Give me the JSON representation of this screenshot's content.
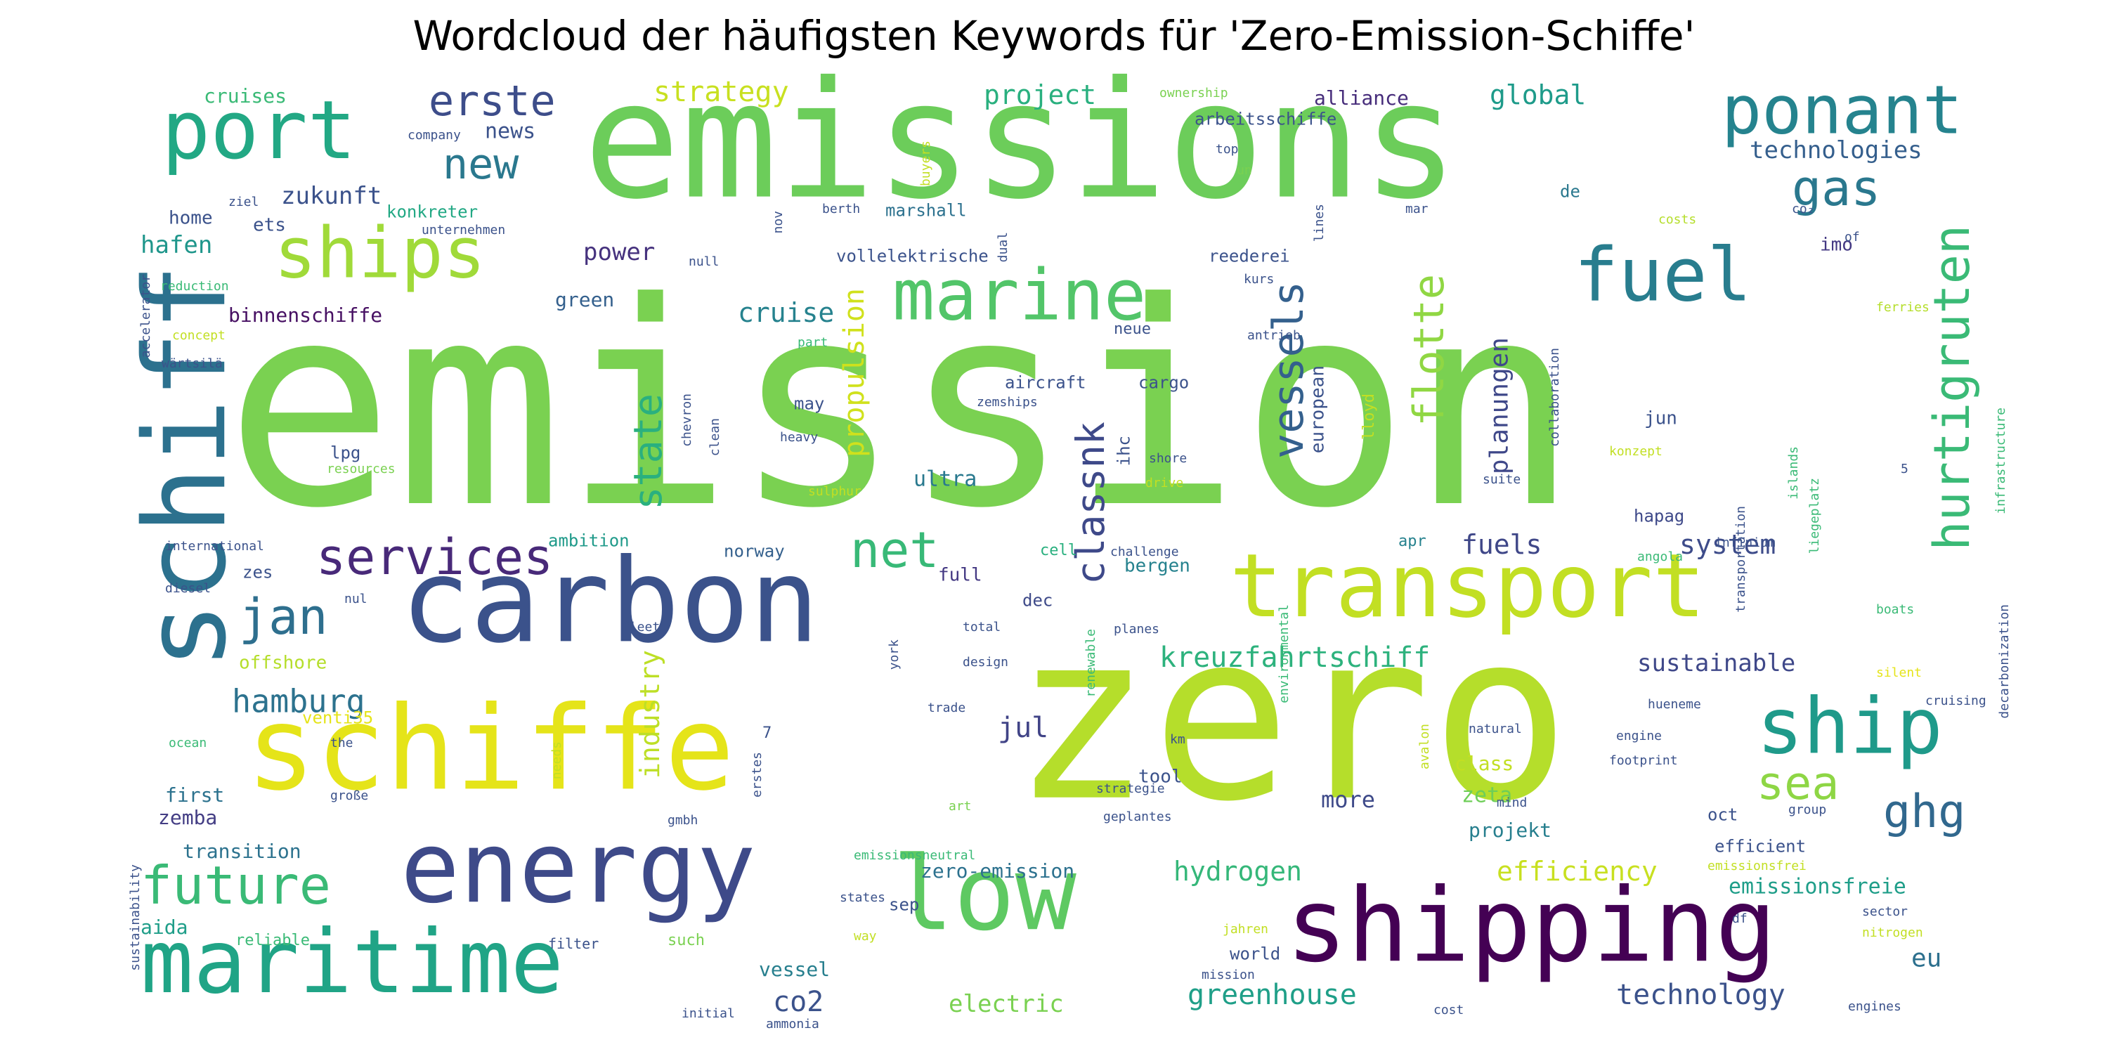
{
  "chart_data": {
    "type": "wordcloud",
    "title": "Wordcloud der häufigsten Keywords für 'Zero-Emission-Schiffe'",
    "words": [
      {
        "text": "emission",
        "weight": 100,
        "color": "#7ad151"
      },
      {
        "text": "emissions",
        "weight": 62,
        "color": "#6ccd5a"
      },
      {
        "text": "zero",
        "weight": 60,
        "color": "#b5de2b"
      },
      {
        "text": "schiff",
        "weight": 34,
        "color": "#2c718e",
        "vertical": true
      },
      {
        "text": "carbon",
        "weight": 42,
        "color": "#3b528b"
      },
      {
        "text": "schiffe",
        "weight": 40,
        "color": "#e5e419"
      },
      {
        "text": "shipping",
        "weight": 36,
        "color": "#440154"
      },
      {
        "text": "low",
        "weight": 35,
        "color": "#5ec962"
      },
      {
        "text": "energy",
        "weight": 33,
        "color": "#3e4a89"
      },
      {
        "text": "maritime",
        "weight": 30,
        "color": "#20a486"
      },
      {
        "text": "transport",
        "weight": 30,
        "color": "#c2df23"
      },
      {
        "text": "port",
        "weight": 28,
        "color": "#22a884"
      },
      {
        "text": "ponant",
        "weight": 22,
        "color": "#25838e"
      },
      {
        "text": "ship",
        "weight": 23,
        "color": "#1f9a8a"
      },
      {
        "text": "fuel",
        "weight": 22,
        "color": "#287d8e"
      },
      {
        "text": "ships",
        "weight": 20,
        "color": "#a0da39"
      },
      {
        "text": "marine",
        "weight": 20,
        "color": "#52c569"
      },
      {
        "text": "hurtigruten",
        "weight": 16,
        "color": "#3aba76",
        "vertical": true
      },
      {
        "text": "services",
        "weight": 15,
        "color": "#482979"
      },
      {
        "text": "future",
        "weight": 15,
        "color": "#3aba76"
      },
      {
        "text": "jan",
        "weight": 15,
        "color": "#2e6f8e"
      },
      {
        "text": "net",
        "weight": 15,
        "color": "#38b977"
      },
      {
        "text": "gas",
        "weight": 15,
        "color": "#2a788e"
      },
      {
        "text": "vessels",
        "weight": 14,
        "color": "#34608d",
        "vertical": true
      },
      {
        "text": "flotte",
        "weight": 14,
        "color": "#90d743",
        "vertical": true
      },
      {
        "text": "state",
        "weight": 13,
        "color": "#2ab07f",
        "vertical": true
      },
      {
        "text": "classnk",
        "weight": 13,
        "color": "#3e4989",
        "vertical": true
      },
      {
        "text": "ghg",
        "weight": 13,
        "color": "#31688e"
      },
      {
        "text": "sea",
        "weight": 13,
        "color": "#8ed645"
      },
      {
        "text": "erste",
        "weight": 12,
        "color": "#3d4d8a"
      },
      {
        "text": "new",
        "weight": 12,
        "color": "#2a788e"
      },
      {
        "text": "propulsion",
        "weight": 9,
        "color": "#d0e11c",
        "vertical": true
      },
      {
        "text": "industry",
        "weight": 8,
        "color": "#bddf26",
        "vertical": true
      },
      {
        "text": "kreuzfahrtschiff",
        "weight": 8,
        "color": "#2db27d"
      },
      {
        "text": "hamburg",
        "weight": 9,
        "color": "#2c728e"
      },
      {
        "text": "greenhouse",
        "weight": 9,
        "color": "#1f9f88"
      },
      {
        "text": "hydrogen",
        "weight": 8,
        "color": "#35b779"
      },
      {
        "text": "efficiency",
        "weight": 8,
        "color": "#c8e020"
      },
      {
        "text": "technology",
        "weight": 8,
        "color": "#3b528b"
      },
      {
        "text": "strategy",
        "weight": 8,
        "color": "#c8e020"
      },
      {
        "text": "project",
        "weight": 8,
        "color": "#2ab07f"
      },
      {
        "text": "global",
        "weight": 8,
        "color": "#1e9b8a"
      },
      {
        "text": "planungen",
        "weight": 7,
        "color": "#3f4889",
        "vertical": true
      },
      {
        "text": "fuels",
        "weight": 7,
        "color": "#3f4788"
      },
      {
        "text": "system",
        "weight": 7,
        "color": "#3e4c8a"
      },
      {
        "text": "sustainable",
        "weight": 6,
        "color": "#3f4889"
      },
      {
        "text": "technologies",
        "weight": 6,
        "color": "#355f8d"
      },
      {
        "text": "jul",
        "weight": 7,
        "color": "#414487"
      },
      {
        "text": "cruise",
        "weight": 7,
        "color": "#26828e"
      },
      {
        "text": "power",
        "weight": 6,
        "color": "#46327e"
      },
      {
        "text": "zukunft",
        "weight": 6,
        "color": "#3b528b"
      },
      {
        "text": "hafen",
        "weight": 6,
        "color": "#1f968b"
      },
      {
        "text": "eu",
        "weight": 6,
        "color": "#2d708e"
      },
      {
        "text": "co2",
        "weight": 7,
        "color": "#3b528b"
      },
      {
        "text": "electric",
        "weight": 6,
        "color": "#7ad151"
      },
      {
        "text": "emissionsfreie",
        "weight": 5,
        "color": "#1f9e89"
      },
      {
        "text": "ultra",
        "weight": 5,
        "color": "#29798e"
      },
      {
        "text": "cruises",
        "weight": 4,
        "color": "#3aba76"
      },
      {
        "text": "news",
        "weight": 4,
        "color": "#3b528b"
      },
      {
        "text": "alliance",
        "weight": 4,
        "color": "#472d7b"
      },
      {
        "text": "european",
        "weight": 4,
        "color": "#3b528b",
        "vertical": true
      },
      {
        "text": "zero-emission",
        "weight": 4,
        "color": "#2c718e"
      },
      {
        "text": "aida",
        "weight": 4,
        "color": "#1f9e89"
      },
      {
        "text": "vessel",
        "weight": 4,
        "color": "#277f8e"
      },
      {
        "text": "more",
        "weight": 5,
        "color": "#3e4a89"
      },
      {
        "text": "zeta",
        "weight": 4,
        "color": "#6ece58"
      },
      {
        "text": "projekt",
        "weight": 4,
        "color": "#277f8e"
      },
      {
        "text": "first",
        "weight": 4,
        "color": "#2c728e"
      },
      {
        "text": "zemba",
        "weight": 4,
        "color": "#433d84"
      },
      {
        "text": "transition",
        "weight": 4,
        "color": "#2c728e"
      },
      {
        "text": "offshore",
        "weight": 4,
        "color": "#b5de2b"
      },
      {
        "text": "binnenschiffe",
        "weight": 4,
        "color": "#471063"
      },
      {
        "text": "green",
        "weight": 4,
        "color": "#34608d"
      },
      {
        "text": "home",
        "weight": 4,
        "color": "#3b528b"
      },
      {
        "text": "ets",
        "weight": 4,
        "color": "#3b528b"
      },
      {
        "text": "konkreter",
        "weight": 3,
        "color": "#22a884"
      },
      {
        "text": "marshall",
        "weight": 3,
        "color": "#2c718e"
      },
      {
        "text": "vollelektrische",
        "weight": 3,
        "color": "#3b528b"
      },
      {
        "text": "reederei",
        "weight": 3,
        "color": "#3b528b"
      },
      {
        "text": "imo",
        "weight": 4,
        "color": "#443983"
      },
      {
        "text": "class",
        "weight": 4,
        "color": "#c2df23"
      },
      {
        "text": "bergen",
        "weight": 3,
        "color": "#26828e"
      },
      {
        "text": "dec",
        "weight": 3,
        "color": "#3e4a89"
      },
      {
        "text": "full",
        "weight": 4,
        "color": "#443983"
      },
      {
        "text": "zes",
        "weight": 3,
        "color": "#3b528b"
      },
      {
        "text": "ambition",
        "weight": 3,
        "color": "#1f9a8a"
      },
      {
        "text": "norway",
        "weight": 3,
        "color": "#34608d"
      },
      {
        "text": "hapag",
        "weight": 3,
        "color": "#3e4989"
      },
      {
        "text": "may",
        "weight": 3,
        "color": "#3b528b"
      },
      {
        "text": "jun",
        "weight": 3,
        "color": "#3b528b"
      },
      {
        "text": "aircraft",
        "weight": 3,
        "color": "#3b528b"
      },
      {
        "text": "cargo",
        "weight": 3,
        "color": "#3b528b"
      },
      {
        "text": "ihc",
        "weight": 3,
        "color": "#3b528b",
        "vertical": true
      },
      {
        "text": "lpg",
        "weight": 3,
        "color": "#3b528b"
      },
      {
        "text": "venti35",
        "weight": 3,
        "color": "#e5e419"
      },
      {
        "text": "tool",
        "weight": 3,
        "color": "#3b528b"
      },
      {
        "text": "oct",
        "weight": 3,
        "color": "#3b528b"
      },
      {
        "text": "efficient",
        "weight": 3,
        "color": "#3b528b"
      },
      {
        "text": "sep",
        "weight": 3,
        "color": "#3b528b"
      },
      {
        "text": "world",
        "weight": 3,
        "color": "#3b528b"
      },
      {
        "text": "lloyd",
        "weight": 3,
        "color": "#c2df23",
        "vertical": true
      },
      {
        "text": "apr",
        "weight": 3,
        "color": "#26828e"
      },
      {
        "text": "cell",
        "weight": 3,
        "color": "#2ab07f"
      },
      {
        "text": "de",
        "weight": 3,
        "color": "#2a788e"
      },
      {
        "text": "neue",
        "weight": 3,
        "color": "#3b528b"
      },
      {
        "text": "reliable",
        "weight": 3,
        "color": "#3aba76"
      },
      {
        "text": "filter",
        "weight": 2,
        "color": "#3b528b"
      },
      {
        "text": "such",
        "weight": 3,
        "color": "#7ad151"
      },
      {
        "text": "nov",
        "weight": 2,
        "color": "#3b528b",
        "vertical": true
      },
      {
        "text": "resources",
        "weight": 2,
        "color": "#7ad151"
      },
      {
        "text": "international",
        "weight": 2,
        "color": "#3b528b"
      },
      {
        "text": "design",
        "weight": 2,
        "color": "#3b528b"
      },
      {
        "text": "total",
        "weight": 2,
        "color": "#3b528b"
      },
      {
        "text": "planes",
        "weight": 2,
        "color": "#3b528b"
      },
      {
        "text": "shore",
        "weight": 2,
        "color": "#3b528b"
      },
      {
        "text": "heavy",
        "weight": 2,
        "color": "#3b528b"
      },
      {
        "text": "clean",
        "weight": 2,
        "color": "#3b528b",
        "vertical": true
      },
      {
        "text": "chevron",
        "weight": 2,
        "color": "#3b528b",
        "vertical": true
      },
      {
        "text": "trade",
        "weight": 2,
        "color": "#3b528b"
      },
      {
        "text": "art",
        "weight": 2,
        "color": "#7ad151"
      },
      {
        "text": "geplantes",
        "weight": 2,
        "color": "#3b528b"
      },
      {
        "text": "strategie",
        "weight": 2,
        "color": "#3b528b"
      },
      {
        "text": "natural",
        "weight": 2,
        "color": "#3b528b"
      },
      {
        "text": "mind",
        "weight": 2,
        "color": "#3b528b"
      },
      {
        "text": "footprint",
        "weight": 2,
        "color": "#3b528b"
      },
      {
        "text": "engine",
        "weight": 2,
        "color": "#3b528b"
      },
      {
        "text": "hueneme",
        "weight": 2,
        "color": "#3b528b"
      },
      {
        "text": "infinium",
        "weight": 2,
        "color": "#3b528b"
      },
      {
        "text": "angola",
        "weight": 2,
        "color": "#3aba76"
      },
      {
        "text": "boats",
        "weight": 2,
        "color": "#3aba76"
      },
      {
        "text": "silent",
        "weight": 2,
        "color": "#e5e419"
      },
      {
        "text": "cruising",
        "weight": 2,
        "color": "#3b528b"
      },
      {
        "text": "ferries",
        "weight": 2,
        "color": "#b5de2b"
      },
      {
        "text": "co₂",
        "weight": 2,
        "color": "#3b528b"
      },
      {
        "text": "of",
        "weight": 2,
        "color": "#3b528b"
      },
      {
        "text": "costs",
        "weight": 2,
        "color": "#b5de2b"
      },
      {
        "text": "konzept",
        "weight": 2,
        "color": "#c2df23"
      },
      {
        "text": "suite",
        "weight": 2,
        "color": "#3b528b"
      },
      {
        "text": "drive",
        "weight": 2,
        "color": "#c2df23"
      },
      {
        "text": "antrieb",
        "weight": 2,
        "color": "#3b528b"
      },
      {
        "text": "kurs",
        "weight": 2,
        "color": "#3b528b"
      },
      {
        "text": "dual",
        "weight": 2,
        "color": "#3b528b",
        "vertical": true
      },
      {
        "text": "mar",
        "weight": 2,
        "color": "#3b528b"
      },
      {
        "text": "top",
        "weight": 2,
        "color": "#3b528b"
      },
      {
        "text": "un",
        "weight": 2,
        "color": "#7ad151"
      },
      {
        "text": "arbeitsschiffe",
        "weight": 3,
        "color": "#3b528b"
      },
      {
        "text": "ownership",
        "weight": 2,
        "color": "#7ad151"
      },
      {
        "text": "buyers",
        "weight": 2,
        "color": "#c2df23",
        "vertical": true
      },
      {
        "text": "berth",
        "weight": 2,
        "color": "#3b528b"
      },
      {
        "text": "null",
        "weight": 2,
        "color": "#3b528b"
      },
      {
        "text": "company",
        "weight": 2,
        "color": "#3b528b"
      },
      {
        "text": "unternehmen",
        "weight": 2,
        "color": "#3b528b"
      },
      {
        "text": "ziel",
        "weight": 2,
        "color": "#3b528b"
      },
      {
        "text": "reduction",
        "weight": 2,
        "color": "#3aba76"
      },
      {
        "text": "concept",
        "weight": 2,
        "color": "#c2df23"
      },
      {
        "text": "wärtsilä",
        "weight": 2,
        "color": "#3b528b"
      },
      {
        "text": "diesel",
        "weight": 2,
        "color": "#3b528b"
      },
      {
        "text": "nul",
        "weight": 2,
        "color": "#3b528b"
      },
      {
        "text": "ocean",
        "weight": 2,
        "color": "#3aba76"
      },
      {
        "text": "the",
        "weight": 2,
        "color": "#3b528b"
      },
      {
        "text": "große",
        "weight": 2,
        "color": "#3b528b"
      },
      {
        "text": "gmbh",
        "weight": 2,
        "color": "#3b528b"
      },
      {
        "text": "needs",
        "weight": 2,
        "color": "#c2df23",
        "vertical": true
      },
      {
        "text": "erstes",
        "weight": 2,
        "color": "#3b528b",
        "vertical": true
      },
      {
        "text": "7",
        "weight": 2,
        "color": "#3b528b"
      },
      {
        "text": "5",
        "weight": 2,
        "color": "#3b528b"
      },
      {
        "text": "way",
        "weight": 2,
        "color": "#c2df23"
      },
      {
        "text": "states",
        "weight": 2,
        "color": "#3b528b"
      },
      {
        "text": "ammonia",
        "weight": 2,
        "color": "#3b528b"
      },
      {
        "text": "initial",
        "weight": 2,
        "color": "#3b528b"
      },
      {
        "text": "cost",
        "weight": 2,
        "color": "#3b528b"
      },
      {
        "text": "engines",
        "weight": 2,
        "color": "#3b528b"
      },
      {
        "text": "nitrogen",
        "weight": 2,
        "color": "#c2df23"
      },
      {
        "text": "sector",
        "weight": 2,
        "color": "#3b528b"
      },
      {
        "text": "df",
        "weight": 2,
        "color": "#3b528b"
      },
      {
        "text": "emissionsfrei",
        "weight": 2,
        "color": "#c2df23"
      },
      {
        "text": "emissionsneutral",
        "weight": 2,
        "color": "#3aba76"
      },
      {
        "text": "group",
        "weight": 2,
        "color": "#3b528b"
      },
      {
        "text": "jahren",
        "weight": 2,
        "color": "#c2df23"
      },
      {
        "text": "mission",
        "weight": 2,
        "color": "#3b528b"
      },
      {
        "text": "km",
        "weight": 2,
        "color": "#3b528b"
      },
      {
        "text": "avalon",
        "weight": 2,
        "color": "#c2df23",
        "vertical": true
      },
      {
        "text": "york",
        "weight": 2,
        "color": "#3b528b",
        "vertical": true
      },
      {
        "text": "renewable",
        "weight": 2,
        "color": "#3aba76",
        "vertical": true
      },
      {
        "text": "challenge",
        "weight": 2,
        "color": "#3b528b"
      },
      {
        "text": "environmental",
        "weight": 2,
        "color": "#3aba76",
        "vertical": true
      },
      {
        "text": "fleet",
        "weight": 2,
        "color": "#3b528b"
      },
      {
        "text": "part",
        "weight": 2,
        "color": "#3aba76"
      },
      {
        "text": "zemships",
        "weight": 2,
        "color": "#3b528b"
      },
      {
        "text": "sulphur",
        "weight": 2,
        "color": "#c2df23"
      },
      {
        "text": "collaboration",
        "weight": 2,
        "color": "#3b528b",
        "vertical": true
      },
      {
        "text": "lines",
        "weight": 2,
        "color": "#3b528b",
        "vertical": true
      },
      {
        "text": "transportation",
        "weight": 2,
        "color": "#3b528b",
        "vertical": true
      },
      {
        "text": "islands",
        "weight": 2,
        "color": "#3aba76",
        "vertical": true
      },
      {
        "text": "liegeplatz",
        "weight": 2,
        "color": "#3aba76",
        "vertical": true
      },
      {
        "text": "decarbonization",
        "weight": 2,
        "color": "#3b528b",
        "vertical": true
      },
      {
        "text": "infrastructure",
        "weight": 2,
        "color": "#3aba76",
        "vertical": true
      },
      {
        "text": "accelerator",
        "weight": 2,
        "color": "#3b528b",
        "vertical": true
      },
      {
        "text": "sustainability",
        "weight": 2,
        "color": "#3b528b",
        "vertical": true
      }
    ]
  }
}
